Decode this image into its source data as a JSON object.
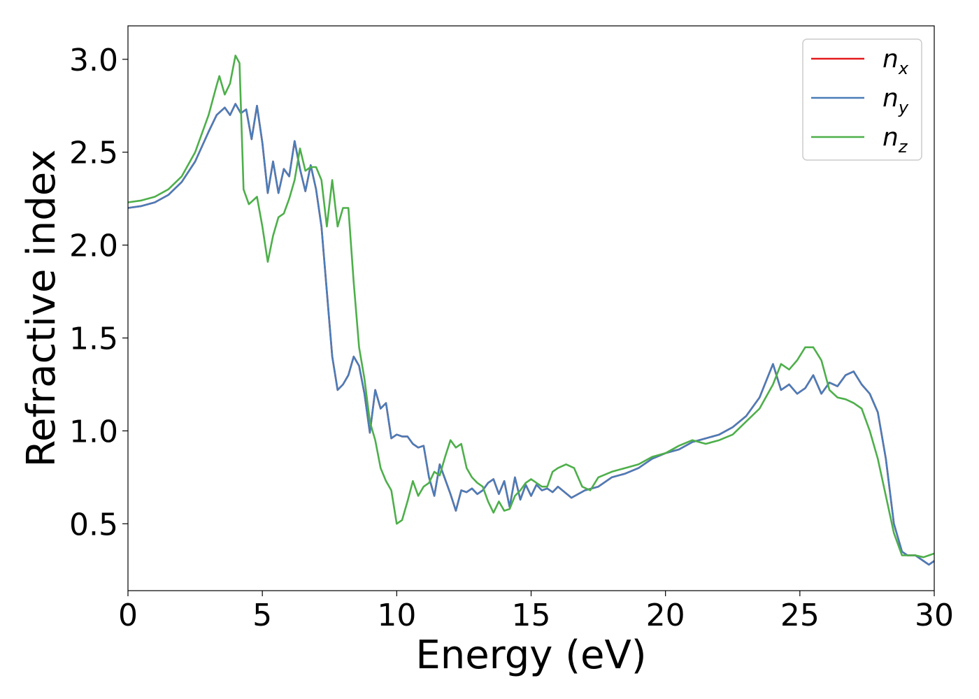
{
  "chart_data": {
    "type": "line",
    "title": "",
    "xlabel": "Energy (eV)",
    "ylabel": "Refractive index",
    "xlim": [
      0,
      30
    ],
    "ylim": [
      0.14,
      3.18
    ],
    "xticks": [
      0,
      5,
      10,
      15,
      20,
      25,
      30
    ],
    "yticks": [
      0.5,
      1.0,
      1.5,
      2.0,
      2.5,
      3.0
    ],
    "xtick_labels": [
      "0",
      "5",
      "10",
      "15",
      "20",
      "25",
      "30"
    ],
    "ytick_labels": [
      "0.5",
      "1.0",
      "1.5",
      "2.0",
      "2.5",
      "3.0"
    ],
    "grid": false,
    "legend_position": "top-right",
    "series": [
      {
        "name": "n_x",
        "legend_base": "n",
        "legend_sub": "x",
        "color": "#e41a1c",
        "x": [
          0,
          0.5,
          1,
          1.5,
          2,
          2.5,
          3,
          3.3,
          3.6,
          3.8,
          4.0,
          4.2,
          4.4,
          4.6,
          4.8,
          5.0,
          5.2,
          5.4,
          5.6,
          5.8,
          6.0,
          6.2,
          6.4,
          6.6,
          6.8,
          7.0,
          7.2,
          7.4,
          7.6,
          7.8,
          8.0,
          8.2,
          8.4,
          8.6,
          8.8,
          9.0,
          9.2,
          9.4,
          9.6,
          9.8,
          10.0,
          10.2,
          10.4,
          10.6,
          10.8,
          11.0,
          11.2,
          11.4,
          11.6,
          11.8,
          12.0,
          12.2,
          12.4,
          12.6,
          12.8,
          13.0,
          13.2,
          13.4,
          13.6,
          13.8,
          14.0,
          14.2,
          14.4,
          14.6,
          14.8,
          15.0,
          15.2,
          15.4,
          15.6,
          15.8,
          16.0,
          16.5,
          17.0,
          17.5,
          18.0,
          18.5,
          19.0,
          19.5,
          20.0,
          20.5,
          21.0,
          21.5,
          22.0,
          22.5,
          23.0,
          23.5,
          24.0,
          24.3,
          24.6,
          24.9,
          25.2,
          25.5,
          25.8,
          26.1,
          26.4,
          26.7,
          27.0,
          27.3,
          27.6,
          27.9,
          28.2,
          28.5,
          28.8,
          29.0,
          29.3,
          29.6,
          29.8,
          30.0
        ],
        "y": [
          2.2,
          2.21,
          2.23,
          2.27,
          2.34,
          2.45,
          2.61,
          2.7,
          2.74,
          2.7,
          2.76,
          2.71,
          2.73,
          2.57,
          2.75,
          2.55,
          2.28,
          2.45,
          2.28,
          2.41,
          2.37,
          2.56,
          2.41,
          2.29,
          2.43,
          2.3,
          2.1,
          1.75,
          1.4,
          1.22,
          1.25,
          1.3,
          1.4,
          1.35,
          1.2,
          0.99,
          1.22,
          1.12,
          1.15,
          0.96,
          0.98,
          0.97,
          0.97,
          0.93,
          0.91,
          0.92,
          0.75,
          0.65,
          0.82,
          0.74,
          0.66,
          0.57,
          0.68,
          0.67,
          0.69,
          0.66,
          0.68,
          0.72,
          0.74,
          0.66,
          0.73,
          0.59,
          0.75,
          0.63,
          0.71,
          0.65,
          0.71,
          0.68,
          0.69,
          0.67,
          0.7,
          0.64,
          0.68,
          0.7,
          0.75,
          0.77,
          0.8,
          0.85,
          0.88,
          0.9,
          0.94,
          0.96,
          0.98,
          1.02,
          1.08,
          1.18,
          1.36,
          1.22,
          1.25,
          1.2,
          1.23,
          1.3,
          1.2,
          1.26,
          1.24,
          1.3,
          1.32,
          1.25,
          1.2,
          1.1,
          0.85,
          0.5,
          0.35,
          0.33,
          0.33,
          0.3,
          0.28,
          0.3
        ]
      },
      {
        "name": "n_y",
        "legend_base": "n",
        "legend_sub": "y",
        "color": "#4a7db8",
        "x": [
          0,
          0.5,
          1,
          1.5,
          2,
          2.5,
          3,
          3.3,
          3.6,
          3.8,
          4.0,
          4.2,
          4.4,
          4.6,
          4.8,
          5.0,
          5.2,
          5.4,
          5.6,
          5.8,
          6.0,
          6.2,
          6.4,
          6.6,
          6.8,
          7.0,
          7.2,
          7.4,
          7.6,
          7.8,
          8.0,
          8.2,
          8.4,
          8.6,
          8.8,
          9.0,
          9.2,
          9.4,
          9.6,
          9.8,
          10.0,
          10.2,
          10.4,
          10.6,
          10.8,
          11.0,
          11.2,
          11.4,
          11.6,
          11.8,
          12.0,
          12.2,
          12.4,
          12.6,
          12.8,
          13.0,
          13.2,
          13.4,
          13.6,
          13.8,
          14.0,
          14.2,
          14.4,
          14.6,
          14.8,
          15.0,
          15.2,
          15.4,
          15.6,
          15.8,
          16.0,
          16.5,
          17.0,
          17.5,
          18.0,
          18.5,
          19.0,
          19.5,
          20.0,
          20.5,
          21.0,
          21.5,
          22.0,
          22.5,
          23.0,
          23.5,
          24.0,
          24.3,
          24.6,
          24.9,
          25.2,
          25.5,
          25.8,
          26.1,
          26.4,
          26.7,
          27.0,
          27.3,
          27.6,
          27.9,
          28.2,
          28.5,
          28.8,
          29.0,
          29.3,
          29.6,
          29.8,
          30.0
        ],
        "y": [
          2.2,
          2.21,
          2.23,
          2.27,
          2.34,
          2.45,
          2.61,
          2.7,
          2.74,
          2.7,
          2.76,
          2.71,
          2.73,
          2.57,
          2.75,
          2.55,
          2.28,
          2.45,
          2.28,
          2.41,
          2.37,
          2.56,
          2.41,
          2.29,
          2.43,
          2.3,
          2.1,
          1.75,
          1.4,
          1.22,
          1.25,
          1.3,
          1.4,
          1.35,
          1.2,
          0.99,
          1.22,
          1.12,
          1.15,
          0.96,
          0.98,
          0.97,
          0.97,
          0.93,
          0.91,
          0.92,
          0.75,
          0.65,
          0.82,
          0.74,
          0.66,
          0.57,
          0.68,
          0.67,
          0.69,
          0.66,
          0.68,
          0.72,
          0.74,
          0.66,
          0.73,
          0.59,
          0.75,
          0.63,
          0.71,
          0.65,
          0.71,
          0.68,
          0.69,
          0.67,
          0.7,
          0.64,
          0.68,
          0.7,
          0.75,
          0.77,
          0.8,
          0.85,
          0.88,
          0.9,
          0.94,
          0.96,
          0.98,
          1.02,
          1.08,
          1.18,
          1.36,
          1.22,
          1.25,
          1.2,
          1.23,
          1.3,
          1.2,
          1.26,
          1.24,
          1.3,
          1.32,
          1.25,
          1.2,
          1.1,
          0.85,
          0.5,
          0.35,
          0.33,
          0.33,
          0.3,
          0.28,
          0.3
        ]
      },
      {
        "name": "n_z",
        "legend_base": "n",
        "legend_sub": "z",
        "color": "#4daf4a",
        "x": [
          0,
          0.5,
          1,
          1.5,
          2,
          2.5,
          3,
          3.3,
          3.4,
          3.6,
          3.8,
          4.0,
          4.15,
          4.3,
          4.5,
          4.8,
          5.0,
          5.2,
          5.4,
          5.6,
          5.8,
          6.0,
          6.2,
          6.4,
          6.6,
          6.8,
          7.0,
          7.2,
          7.4,
          7.6,
          7.8,
          8.0,
          8.2,
          8.4,
          8.6,
          8.8,
          9.0,
          9.2,
          9.4,
          9.6,
          9.8,
          10.0,
          10.2,
          10.4,
          10.6,
          10.8,
          11.0,
          11.2,
          11.4,
          11.6,
          11.8,
          12.0,
          12.2,
          12.4,
          12.6,
          12.8,
          13.0,
          13.2,
          13.4,
          13.6,
          13.8,
          14.0,
          14.2,
          14.4,
          14.6,
          14.8,
          15.0,
          15.2,
          15.4,
          15.6,
          15.8,
          16.0,
          16.3,
          16.6,
          16.9,
          17.2,
          17.5,
          18.0,
          18.5,
          19.0,
          19.5,
          20.0,
          20.5,
          21.0,
          21.5,
          22.0,
          22.5,
          23.0,
          23.5,
          24.0,
          24.3,
          24.6,
          24.9,
          25.2,
          25.5,
          25.8,
          26.1,
          26.4,
          26.7,
          27.0,
          27.3,
          27.6,
          27.9,
          28.2,
          28.5,
          28.8,
          29.0,
          29.3,
          29.6,
          29.8,
          30.0
        ],
        "y": [
          2.23,
          2.24,
          2.26,
          2.3,
          2.37,
          2.5,
          2.7,
          2.86,
          2.91,
          2.81,
          2.87,
          3.02,
          2.98,
          2.3,
          2.22,
          2.26,
          2.1,
          1.91,
          2.05,
          2.15,
          2.17,
          2.25,
          2.35,
          2.52,
          2.4,
          2.42,
          2.42,
          2.35,
          2.1,
          2.35,
          2.1,
          2.2,
          2.2,
          1.8,
          1.45,
          1.28,
          1.05,
          0.95,
          0.8,
          0.73,
          0.68,
          0.5,
          0.52,
          0.62,
          0.73,
          0.65,
          0.7,
          0.72,
          0.78,
          0.76,
          0.86,
          0.95,
          0.91,
          0.93,
          0.8,
          0.75,
          0.72,
          0.7,
          0.62,
          0.56,
          0.62,
          0.57,
          0.58,
          0.65,
          0.68,
          0.72,
          0.74,
          0.72,
          0.7,
          0.7,
          0.78,
          0.8,
          0.82,
          0.8,
          0.7,
          0.68,
          0.75,
          0.78,
          0.8,
          0.82,
          0.86,
          0.88,
          0.92,
          0.95,
          0.93,
          0.95,
          0.98,
          1.05,
          1.12,
          1.25,
          1.36,
          1.33,
          1.38,
          1.45,
          1.45,
          1.38,
          1.22,
          1.18,
          1.17,
          1.15,
          1.12,
          1.0,
          0.85,
          0.65,
          0.45,
          0.33,
          0.33,
          0.33,
          0.32,
          0.33,
          0.34
        ]
      }
    ]
  }
}
